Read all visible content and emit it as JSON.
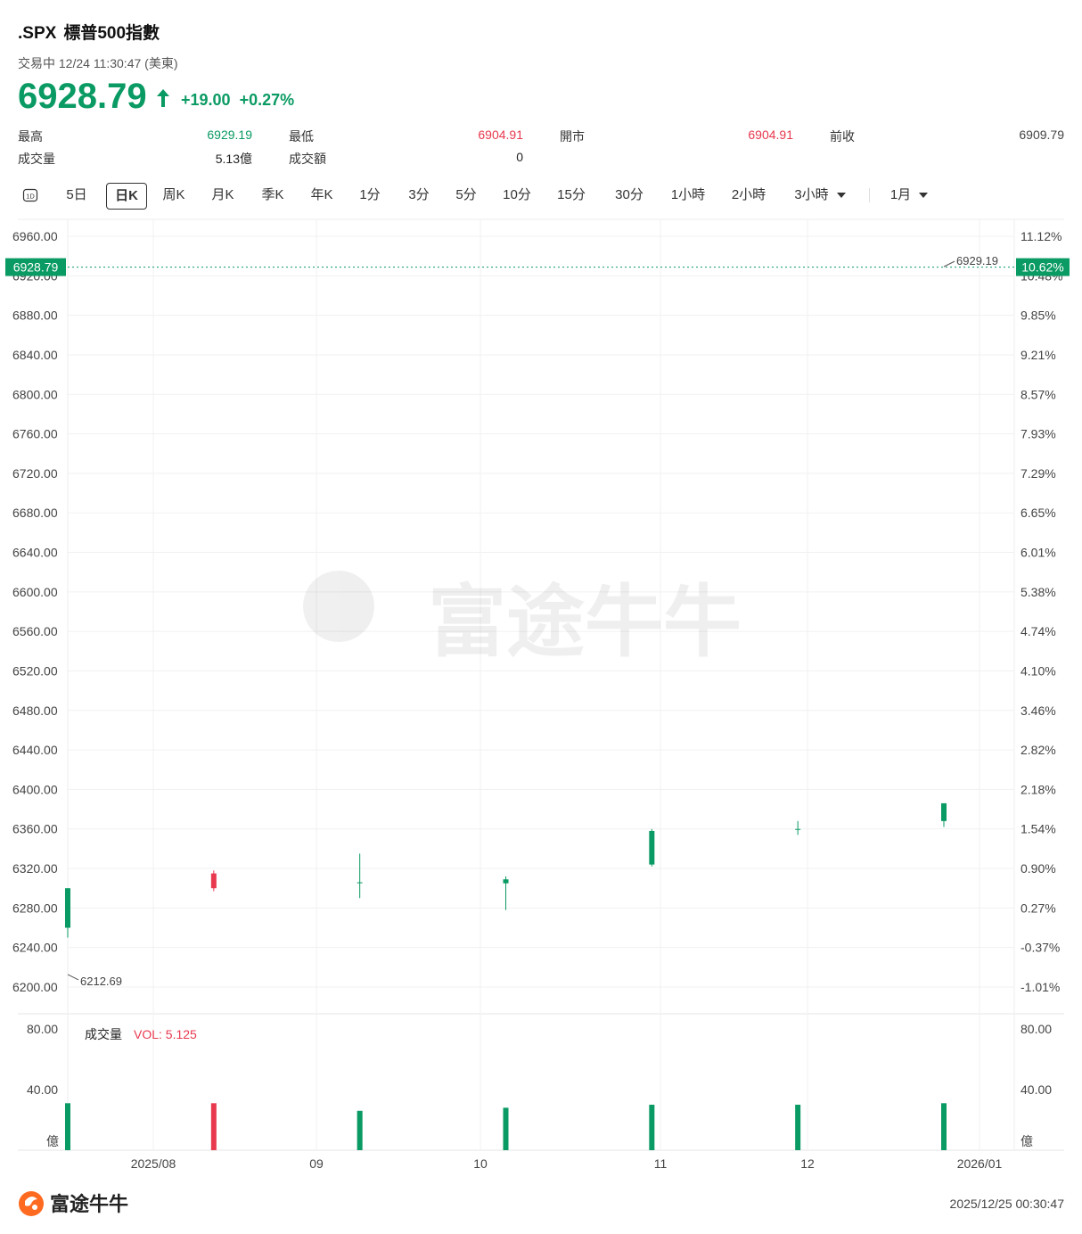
{
  "header": {
    "symbol": ".SPX",
    "name": "標普500指數",
    "status": "交易中 12/24 11:30:47 (美東)",
    "price": "6928.79",
    "change": "+19.00",
    "change_pct": "+0.27%"
  },
  "stats": [
    {
      "label": "最高",
      "value": "6929.19",
      "color": "#0a9a63"
    },
    {
      "label": "最低",
      "value": "6904.91",
      "color": "#e8394f"
    },
    {
      "label": "開市",
      "value": "6904.91",
      "color": "#e8394f"
    },
    {
      "label": "前收",
      "value": "6909.79",
      "color": "#444444"
    },
    {
      "label": "成交量",
      "value": "5.13億",
      "color": "#222222"
    },
    {
      "label": "成交額",
      "value": "0",
      "color": "#222222"
    }
  ],
  "tabs": {
    "icon_label": "1D",
    "items": [
      "5日",
      "日K",
      "周K",
      "月K",
      "季K",
      "年K",
      "1分",
      "3分",
      "5分",
      "10分",
      "15分",
      "30分",
      "1小時",
      "2小時",
      "3小時",
      "1月"
    ],
    "active": "日K"
  },
  "volume_panel": {
    "label": "成交量",
    "vol_text": "VOL: 5.125",
    "unit": "億"
  },
  "footer": {
    "brand": "富途牛牛",
    "timestamp": "2025/12/25 00:30:47"
  },
  "colors": {
    "up": "#0a9a63",
    "down": "#e8394f"
  },
  "chart_data": {
    "type": "candlestick",
    "current_price_label": "6928.79",
    "current_pct_label": "10.62%",
    "high_label": "6929.19",
    "low_label": "6212.69",
    "y_ticks": [
      "6960.00",
      "6920.00",
      "6880.00",
      "6840.00",
      "6800.00",
      "6760.00",
      "6720.00",
      "6680.00",
      "6640.00",
      "6600.00",
      "6560.00",
      "6520.00",
      "6480.00",
      "6440.00",
      "6400.00",
      "6360.00",
      "6320.00",
      "6280.00",
      "6240.00",
      "6200.00"
    ],
    "pct_ticks": [
      "11.12%",
      "10.48%",
      "9.85%",
      "9.21%",
      "8.57%",
      "7.93%",
      "7.29%",
      "6.65%",
      "6.01%",
      "5.38%",
      "4.74%",
      "4.10%",
      "3.46%",
      "2.82%",
      "2.18%",
      "1.54%",
      "0.90%",
      "0.27%",
      "-0.37%",
      "-1.01%"
    ],
    "ylim": [
      6200,
      6960
    ],
    "x_labels": [
      "2025/08",
      "09",
      "10",
      "11",
      "12",
      "2026/01"
    ],
    "vol_ticks": [
      "80.00",
      "40.00"
    ],
    "vol_ylim": [
      0,
      80
    ],
    "candles": [
      [
        6260,
        6300,
        6250,
        6300,
        31
      ],
      [
        6315,
        6300,
        6297,
        6318,
        31
      ],
      [
        6306,
        6306,
        6290,
        6335,
        26
      ],
      [
        6305,
        6309,
        6278,
        6312,
        28
      ],
      [
        6324,
        6358,
        6322,
        6360,
        30
      ],
      [
        6360,
        6360,
        6354,
        6368,
        30
      ],
      [
        6368,
        6386,
        6362,
        6386,
        31
      ]
    ]
  }
}
